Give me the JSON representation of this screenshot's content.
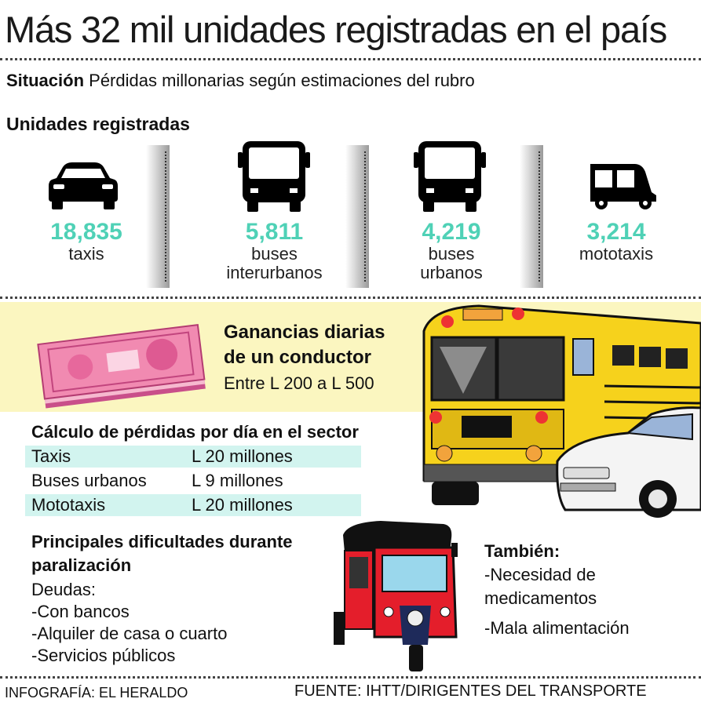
{
  "title": "Más 32 mil unidades registradas en el país",
  "subtitle": {
    "label": "Situación",
    "text": "Pérdidas millonarias según estimaciones del rubro"
  },
  "units_heading": "Unidades registradas",
  "units": [
    {
      "value": "18,835",
      "label": "taxis",
      "icon": "car-icon"
    },
    {
      "value": "5,811",
      "label": "buses interurbanos",
      "icon": "bus-icon"
    },
    {
      "value": "4,219",
      "label": "buses urbanos",
      "icon": "bus-icon"
    },
    {
      "value": "3,214",
      "label": "mototaxis",
      "icon": "mototaxi-icon"
    }
  ],
  "earnings": {
    "title": "Ganancias diarias de un conductor",
    "value": "Entre L 200 a L 500"
  },
  "losses": {
    "title": "Cálculo de pérdidas por día en el sector",
    "rows": [
      {
        "name": "Taxis",
        "value": "L 20 millones"
      },
      {
        "name": "Buses urbanos",
        "value": "L 9 millones"
      },
      {
        "name": "Mototaxis",
        "value": "L 20 millones"
      }
    ]
  },
  "difficulties": {
    "title": "Principales dificultades durante paralización",
    "intro": "Deudas:",
    "items": [
      "-Con bancos",
      "-Alquiler de casa o cuarto",
      "-Servicios públicos"
    ]
  },
  "also": {
    "title": "También:",
    "items": [
      "-Necesidad de medicamentos",
      "-Mala alimentación"
    ]
  },
  "footer": {
    "credit": "INFOGRAFÍA: EL HERALDO",
    "source": "FUENTE: IHTT/DIRIGENTES DEL TRANSPORTE"
  },
  "colors": {
    "accent": "#4fd1b6",
    "band": "#fbf6c0",
    "highlight": "#d2f4ef",
    "bus_yellow": "#f6d21c",
    "mototaxi_red": "#e41e2b"
  }
}
